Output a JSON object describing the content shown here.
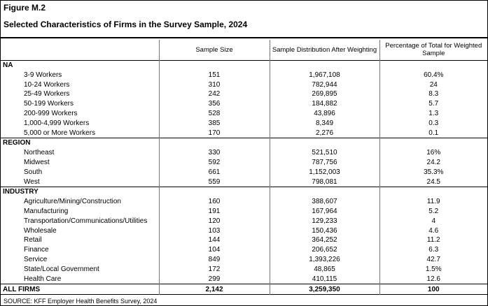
{
  "figure": {
    "label": "Figure M.2",
    "title": "Selected Characteristics of Firms in the Survey Sample, 2024"
  },
  "table": {
    "columns": [
      "",
      "Sample Size",
      "Sample Distribution After Weighting",
      "Percentage of Total for Weighted Sample"
    ],
    "sections": [
      {
        "name": "NA",
        "rows": [
          [
            "3-9 Workers",
            "151",
            "1,967,108",
            "60.4%"
          ],
          [
            "10-24 Workers",
            "310",
            "782,944",
            "24"
          ],
          [
            "25-49 Workers",
            "242",
            "269,895",
            "8.3"
          ],
          [
            "50-199 Workers",
            "356",
            "184,882",
            "5.7"
          ],
          [
            "200-999 Workers",
            "528",
            "43,896",
            "1.3"
          ],
          [
            "1,000-4,999 Workers",
            "385",
            "8,349",
            "0.3"
          ],
          [
            "5,000 or More Workers",
            "170",
            "2,276",
            "0.1"
          ]
        ]
      },
      {
        "name": "REGION",
        "rows": [
          [
            "Northeast",
            "330",
            "521,510",
            "16%"
          ],
          [
            "Midwest",
            "592",
            "787,756",
            "24.2"
          ],
          [
            "South",
            "661",
            "1,152,003",
            "35.3%"
          ],
          [
            "West",
            "559",
            "798,081",
            "24.5"
          ]
        ]
      },
      {
        "name": "INDUSTRY",
        "rows": [
          [
            "Agriculture/Mining/Construction",
            "160",
            "388,607",
            "11.9"
          ],
          [
            "Manufacturing",
            "191",
            "167,964",
            "5.2"
          ],
          [
            "Transportation/Communications/Utilities",
            "120",
            "129,233",
            "4"
          ],
          [
            "Wholesale",
            "103",
            "150,436",
            "4.6"
          ],
          [
            "Retail",
            "144",
            "364,252",
            "11.2"
          ],
          [
            "Finance",
            "104",
            "206,652",
            "6.3"
          ],
          [
            "Service",
            "849",
            "1,393,226",
            "42.7"
          ],
          [
            "State/Local Government",
            "172",
            "48,865",
            "1.5%"
          ],
          [
            "Health Care",
            "299",
            "410,115",
            "12.6"
          ]
        ]
      }
    ],
    "total_row": {
      "label": "ALL FIRMS",
      "sample_size": "2,142",
      "distribution": "3,259,350",
      "percentage": "100"
    }
  },
  "source": "SOURCE: KFF Employer Health Benefits Survey, 2024"
}
